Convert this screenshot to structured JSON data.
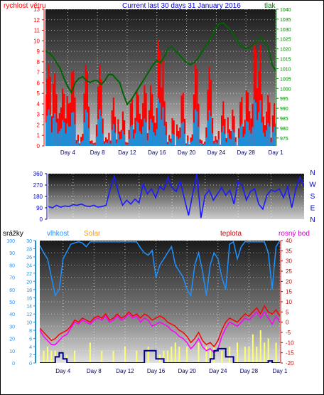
{
  "chart_data": [
    {
      "type": "line",
      "title": "Current last 30 days 31 January 2016",
      "left_axis_label": "rychlost větru",
      "right_axis_label": "tlak",
      "x_ticks": [
        "Day 4",
        "Day 8",
        "Day 12",
        "Day 16",
        "Day 20",
        "Day 24",
        "Day 28",
        "Day 1"
      ],
      "ylim_left": [
        0,
        13
      ],
      "y_ticks_left": [
        "0",
        "1",
        "2",
        "3",
        "4",
        "5",
        "6",
        "7",
        "8",
        "9",
        "10",
        "11",
        "12",
        "13"
      ],
      "ylim_right": [
        971,
        1040
      ],
      "y_ticks_right": [
        "975",
        "980",
        "985",
        "990",
        "995",
        "1000",
        "1005",
        "1010",
        "1015",
        "1020",
        "1025",
        "1030",
        "1035",
        "1040"
      ],
      "colors": {
        "gust": "#ff0000",
        "wind": "#1f8fd8",
        "pressure": "#006400",
        "left_axis": "#ff0000",
        "right_axis": "#008000"
      },
      "pressure_x": [
        1.0,
        1.5,
        2.0,
        2.5,
        3.0,
        3.5,
        4.0,
        4.5,
        5.0,
        5.5,
        6.0,
        6.5,
        7.0,
        7.5,
        8.0,
        8.5,
        9.0,
        9.5,
        10.0,
        10.5,
        11.0,
        11.5,
        12.0,
        12.5,
        13.0,
        13.5,
        14.0,
        14.5,
        15.0,
        15.5,
        16.0,
        16.5,
        17.0,
        17.5,
        18.0,
        18.5,
        19.0,
        19.5,
        20.0,
        20.5,
        21.0,
        21.5,
        22.0,
        22.5,
        23.0,
        23.5,
        24.0,
        24.5,
        25.0,
        25.5,
        26.0,
        26.5,
        27.0,
        27.5,
        28.0,
        28.5,
        29.0,
        29.5,
        30.0,
        30.5,
        31.0,
        31.5,
        32.0
      ],
      "pressure_y": [
        1019,
        1018,
        1016,
        1013,
        1010,
        1005,
        1001,
        998,
        1003,
        1005,
        1006,
        1004,
        1003,
        1004,
        1004,
        1002,
        1004,
        1007,
        1007,
        1005,
        1003,
        997,
        992,
        994,
        997,
        1000,
        1003,
        1006,
        1009,
        1012,
        1014,
        1013,
        1016,
        1020,
        1021,
        1019,
        1017,
        1015,
        1013,
        1012,
        1013,
        1015,
        1018,
        1021,
        1024,
        1027,
        1031,
        1033,
        1033,
        1031,
        1029,
        1026,
        1023,
        1021,
        1020,
        1021,
        1022,
        1024,
        1026,
        1023,
        1021,
        1012,
        1009
      ]
    },
    {
      "type": "line",
      "right_axis_label": "N W S E N",
      "x_ticks": [
        "Day 4",
        "Day 8",
        "Day 12",
        "Day 16",
        "Day 20",
        "Day 24",
        "Day 28",
        "Day 1"
      ],
      "ylim": [
        0,
        360
      ],
      "y_ticks": [
        "0",
        "90",
        "180",
        "270",
        "360"
      ],
      "compass": [
        "N",
        "W",
        "S",
        "E",
        "N"
      ],
      "colors": {
        "direction": "#1a1aff",
        "axis": "#0000cc"
      },
      "direction_x": [
        1.0,
        1.5,
        2.0,
        2.5,
        3.0,
        3.5,
        4.0,
        4.5,
        5.0,
        5.5,
        6.0,
        6.5,
        7.0,
        7.5,
        8.0,
        8.5,
        9.0,
        9.5,
        10.0,
        10.5,
        11.0,
        11.5,
        12.0,
        12.5,
        13.0,
        13.5,
        14.0,
        14.5,
        15.0,
        15.5,
        16.0,
        16.5,
        17.0,
        17.5,
        18.0,
        18.5,
        19.0,
        19.5,
        20.0,
        20.5,
        21.0,
        21.5,
        22.0,
        22.5,
        23.0,
        23.5,
        24.0,
        24.5,
        25.0,
        25.5,
        26.0,
        26.5,
        27.0,
        27.5,
        28.0,
        28.5,
        29.0,
        29.5,
        30.0,
        30.5,
        31.0,
        31.5,
        32.0
      ],
      "direction_y": [
        100,
        90,
        110,
        95,
        105,
        100,
        115,
        110,
        120,
        105,
        100,
        110,
        95,
        100,
        110,
        240,
        340,
        210,
        110,
        150,
        120,
        160,
        130,
        280,
        200,
        240,
        170,
        260,
        230,
        330,
        250,
        220,
        300,
        160,
        30,
        200,
        360,
        10,
        190,
        230,
        150,
        200,
        250,
        190,
        230,
        120,
        300,
        270,
        150,
        220,
        240,
        120,
        80,
        190,
        230,
        220,
        240,
        170,
        260,
        90,
        240,
        330,
        260
      ]
    },
    {
      "type": "line",
      "axis_labels": {
        "rain": "srážky",
        "humidity": "vlhkost",
        "solar": "Solar",
        "temperature": "teplota",
        "dew_point": "rosný bod"
      },
      "x_ticks": [
        "Day 4",
        "Day 8",
        "Day 12",
        "Day 16",
        "Day 20",
        "Day 24",
        "Day 28",
        "Day 1"
      ],
      "ylim_humidity": [
        0,
        100
      ],
      "y_ticks_humidity": [
        "0",
        "10",
        "20",
        "30",
        "40",
        "50",
        "60",
        "70",
        "80",
        "90",
        "100"
      ],
      "ylim_rain": [
        0,
        30
      ],
      "y_ticks_rain": [
        "0",
        "2",
        "4",
        "6",
        "8",
        "10",
        "12",
        "14",
        "16",
        "18",
        "20",
        "22",
        "24",
        "26",
        "28",
        "30"
      ],
      "ylim_temp": [
        -20,
        40
      ],
      "y_ticks_temp": [
        "-20",
        "-15",
        "-10",
        "-5",
        "0",
        "5",
        "10",
        "15",
        "20",
        "25",
        "30",
        "35",
        "40"
      ],
      "colors": {
        "humidity": "#1e90ff",
        "temperature": "#ff0000",
        "dew_point": "#ff00ff",
        "rain": "#00008b",
        "solar": "#ffff66",
        "rain_axis": "#1a8fd8",
        "temp_axis": "#cc0000",
        "solar_label": "#ff9900"
      },
      "humidity_x": [
        1.0,
        1.5,
        2.0,
        2.5,
        3.0,
        3.5,
        4.0,
        4.5,
        5.0,
        5.5,
        6.0,
        6.5,
        7.0,
        7.5,
        8.0,
        8.5,
        9.0,
        9.5,
        10.0,
        10.5,
        11.0,
        11.5,
        12.0,
        12.5,
        13.0,
        13.5,
        14.0,
        14.5,
        15.0,
        15.5,
        16.0,
        16.5,
        17.0,
        17.5,
        18.0,
        18.5,
        19.0,
        19.5,
        20.0,
        20.5,
        21.0,
        21.5,
        22.0,
        22.5,
        23.0,
        23.5,
        24.0,
        24.5,
        25.0,
        25.5,
        26.0,
        26.5,
        27.0,
        27.5,
        28.0,
        28.5,
        29.0,
        29.5,
        30.0,
        30.5,
        31.0,
        31.5,
        32.0
      ],
      "humidity_y": [
        96,
        90,
        85,
        70,
        55,
        60,
        85,
        91,
        97,
        98,
        99,
        98,
        95,
        99,
        99,
        99,
        99,
        99,
        99,
        99,
        99,
        99,
        99,
        99,
        99,
        99,
        94,
        90,
        88,
        92,
        70,
        80,
        85,
        90,
        95,
        80,
        75,
        70,
        60,
        55,
        80,
        90,
        75,
        55,
        80,
        90,
        85,
        70,
        60,
        97,
        99,
        85,
        95,
        99,
        99,
        99,
        99,
        99,
        99,
        90,
        60,
        95,
        100
      ],
      "temperature_x": [
        1.0,
        1.5,
        2.0,
        2.5,
        3.0,
        3.5,
        4.0,
        4.5,
        5.0,
        5.5,
        6.0,
        6.5,
        7.0,
        7.5,
        8.0,
        8.5,
        9.0,
        9.5,
        10.0,
        10.5,
        11.0,
        11.5,
        12.0,
        12.5,
        13.0,
        13.5,
        14.0,
        14.5,
        15.0,
        15.5,
        16.0,
        16.5,
        17.0,
        17.5,
        18.0,
        18.5,
        19.0,
        19.5,
        20.0,
        20.5,
        21.0,
        21.5,
        22.0,
        22.5,
        23.0,
        23.5,
        24.0,
        24.5,
        25.0,
        25.5,
        26.0,
        26.5,
        27.0,
        27.5,
        28.0,
        28.5,
        29.0,
        29.5,
        30.0,
        30.5,
        31.0,
        31.5,
        32.0
      ],
      "temperature_y": [
        -3,
        -5,
        -7,
        -9,
        -8,
        -6,
        -5,
        -4,
        -2,
        1,
        0,
        2,
        1,
        0,
        2,
        3,
        2,
        4,
        1,
        2,
        4,
        2,
        3,
        5,
        3,
        4,
        2,
        4,
        3,
        1,
        2,
        3,
        2,
        0,
        -1,
        -2,
        -4,
        -5,
        -7,
        -10,
        -8,
        -5,
        -9,
        -11,
        -10,
        -12,
        -9,
        -4,
        0,
        2,
        1,
        0,
        2,
        4,
        3,
        5,
        7,
        4,
        8,
        5,
        4,
        6,
        3
      ],
      "dew_point_x": [
        1.0,
        1.5,
        2.0,
        2.5,
        3.0,
        3.5,
        4.0,
        4.5,
        5.0,
        5.5,
        6.0,
        6.5,
        7.0,
        7.5,
        8.0,
        8.5,
        9.0,
        9.5,
        10.0,
        10.5,
        11.0,
        11.5,
        12.0,
        12.5,
        13.0,
        13.5,
        14.0,
        14.5,
        15.0,
        15.5,
        16.0,
        16.5,
        17.0,
        17.5,
        18.0,
        18.5,
        19.0,
        19.5,
        20.0,
        20.5,
        21.0,
        21.5,
        22.0,
        22.5,
        23.0,
        23.5,
        24.0,
        24.5,
        25.0,
        25.5,
        26.0,
        26.5,
        27.0,
        27.5,
        28.0,
        28.5,
        29.0,
        29.5,
        30.0,
        30.5,
        31.0,
        31.5,
        32.0
      ],
      "dew_point_y": [
        -4,
        -7,
        -9,
        -11,
        -11,
        -9,
        -7,
        -6,
        -3,
        0,
        -1,
        1,
        0,
        -1,
        1,
        2,
        1,
        3,
        0,
        1,
        3,
        1,
        2,
        4,
        2,
        3,
        0,
        2,
        1,
        -2,
        -1,
        0,
        -1,
        -2,
        -4,
        -5,
        -7,
        -8,
        -10,
        -13,
        -11,
        -8,
        -12,
        -14,
        -13,
        -15,
        -13,
        -7,
        -3,
        0,
        -1,
        -2,
        0,
        2,
        1,
        3,
        5,
        2,
        5,
        2,
        -1,
        3,
        0
      ],
      "rain_x": [
        1.0,
        2.0,
        3.0,
        3.5,
        4.0,
        4.5,
        5.0,
        6.0,
        7.0,
        8.0,
        9.0,
        10.0,
        11.0,
        11.5,
        12.0,
        13.0,
        14.0,
        14.5,
        15.0,
        16.0,
        17.0,
        18.0,
        19.0,
        20.0,
        21.0,
        22.0,
        23.0,
        23.5,
        24.0,
        25.0,
        26.0,
        27.0,
        28.0,
        29.0,
        30.0,
        30.5,
        31.0,
        32.0
      ],
      "rain_y": [
        0,
        0,
        1.5,
        2.5,
        1.0,
        0,
        0,
        0,
        0,
        0,
        0,
        0,
        0,
        0,
        0,
        0,
        0,
        3.0,
        3.0,
        1.0,
        0,
        0,
        0,
        0,
        0,
        0,
        1.0,
        3.0,
        3.5,
        1.5,
        0,
        0,
        0,
        0,
        0,
        0.5,
        0,
        0
      ],
      "solar_x": [
        1.5,
        2.0,
        2.5,
        3.0,
        4.5,
        5.5,
        7.5,
        9.0,
        10.5,
        12.0,
        13.5,
        15.0,
        16.5,
        17.0,
        17.5,
        18.0,
        18.5,
        19.0,
        20.0,
        21.5,
        22.5,
        23.0,
        23.5,
        24.5,
        25.5,
        26.5,
        27.5,
        28.0,
        28.5,
        29.0,
        29.5,
        30.0,
        30.5,
        31.5
      ],
      "solar_y": [
        3,
        4,
        3,
        3,
        2,
        3,
        5,
        3,
        3,
        4,
        3,
        4,
        2,
        3,
        3,
        4,
        5,
        4,
        4,
        5,
        4,
        3,
        4,
        3,
        4,
        5,
        4,
        4,
        7,
        4,
        8,
        5,
        6,
        5
      ]
    }
  ]
}
